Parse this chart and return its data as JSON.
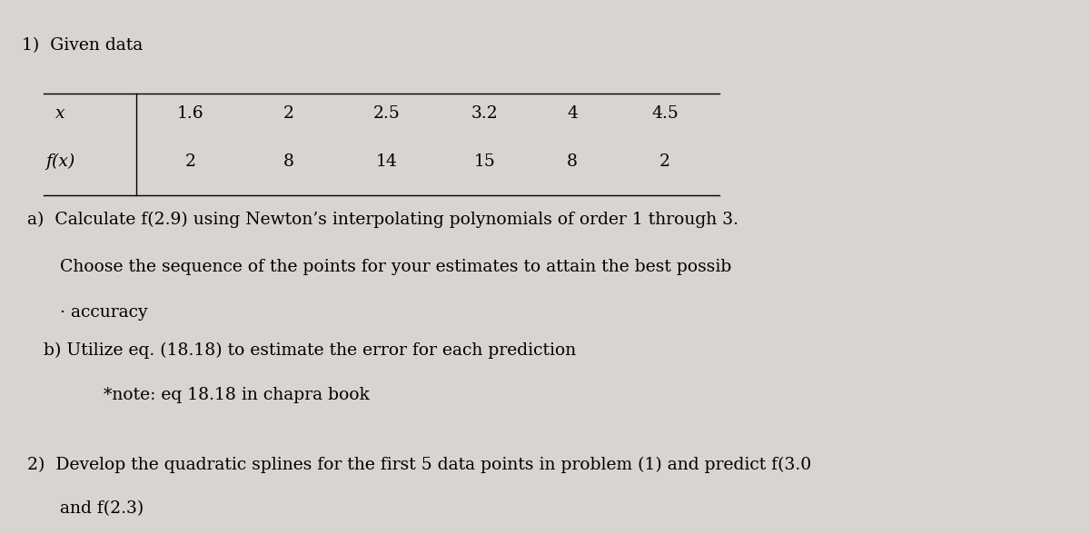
{
  "bg_color": "#d8d4d0",
  "title_1": "1)  Given data",
  "table_x_label": "x",
  "table_fx_label": "f(x)",
  "x_values": [
    "1.6",
    "2",
    "2.5",
    "3.2",
    "4",
    "4.5"
  ],
  "fx_values": [
    "2",
    "8",
    "14",
    "15",
    "8",
    "2"
  ],
  "part_a_line1": "a)  Calculate f(2.9) using Newton’s interpolating polynomials of order 1 through 3.",
  "part_a_line2": "      Choose the sequence of the points for your estimates to attain the best possib",
  "part_a_line3": "      · accuracy",
  "part_b_line1": "   b) Utilize eq. (18.18) to estimate the error for each prediction",
  "part_b_line2": "              *note: eq 18.18 in chapra book",
  "title_2": "2)  Develop the quadratic splines for the first 5 data points in problem (1) and predict f(3.0",
  "title_2_line2": "      and f(2.3)"
}
